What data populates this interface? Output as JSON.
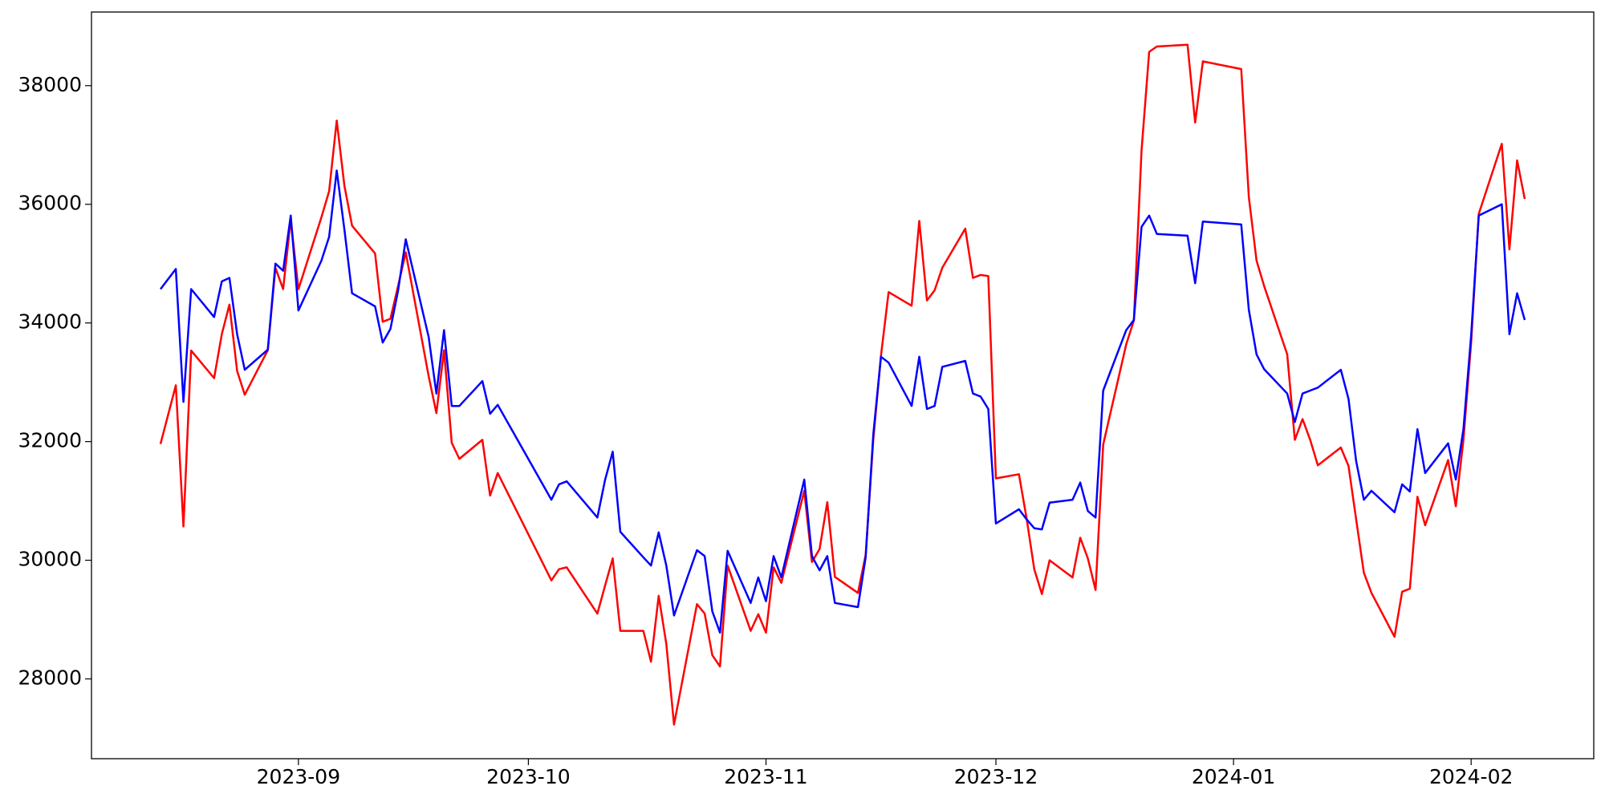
{
  "chart_data": {
    "type": "line",
    "x": [
      "2023-08-14",
      "2023-08-16",
      "2023-08-17",
      "2023-08-18",
      "2023-08-21",
      "2023-08-22",
      "2023-08-23",
      "2023-08-24",
      "2023-08-25",
      "2023-08-28",
      "2023-08-29",
      "2023-08-30",
      "2023-08-31",
      "2023-09-01",
      "2023-09-04",
      "2023-09-05",
      "2023-09-06",
      "2023-09-07",
      "2023-09-08",
      "2023-09-11",
      "2023-09-12",
      "2023-09-13",
      "2023-09-14",
      "2023-09-15",
      "2023-09-18",
      "2023-09-19",
      "2023-09-20",
      "2023-09-21",
      "2023-09-22",
      "2023-09-25",
      "2023-09-26",
      "2023-09-27",
      "2023-10-04",
      "2023-10-05",
      "2023-10-06",
      "2023-10-10",
      "2023-10-11",
      "2023-10-12",
      "2023-10-13",
      "2023-10-16",
      "2023-10-17",
      "2023-10-18",
      "2023-10-19",
      "2023-10-20",
      "2023-10-23",
      "2023-10-24",
      "2023-10-25",
      "2023-10-26",
      "2023-10-27",
      "2023-10-30",
      "2023-10-31",
      "2023-11-01",
      "2023-11-02",
      "2023-11-03",
      "2023-11-06",
      "2023-11-07",
      "2023-11-08",
      "2023-11-09",
      "2023-11-10",
      "2023-11-13",
      "2023-11-14",
      "2023-11-15",
      "2023-11-16",
      "2023-11-17",
      "2023-11-20",
      "2023-11-21",
      "2023-11-22",
      "2023-11-23",
      "2023-11-24",
      "2023-11-27",
      "2023-11-28",
      "2023-11-29",
      "2023-11-30",
      "2023-12-01",
      "2023-12-04",
      "2023-12-05",
      "2023-12-06",
      "2023-12-07",
      "2023-12-08",
      "2023-12-11",
      "2023-12-12",
      "2023-12-13",
      "2023-12-14",
      "2023-12-15",
      "2023-12-18",
      "2023-12-19",
      "2023-12-20",
      "2023-12-21",
      "2023-12-22",
      "2023-12-26",
      "2023-12-27",
      "2023-12-28",
      "2024-01-02",
      "2024-01-03",
      "2024-01-04",
      "2024-01-05",
      "2024-01-08",
      "2024-01-09",
      "2024-01-10",
      "2024-01-11",
      "2024-01-12",
      "2024-01-15",
      "2024-01-16",
      "2024-01-17",
      "2024-01-18",
      "2024-01-19",
      "2024-01-22",
      "2024-01-23",
      "2024-01-24",
      "2024-01-25",
      "2024-01-26",
      "2024-01-29",
      "2024-01-30",
      "2024-01-31",
      "2024-02-01",
      "2024-02-02",
      "2024-02-05",
      "2024-02-06",
      "2024-02-07",
      "2024-02-08"
    ],
    "series": [
      {
        "color": "red",
        "values": [
          31960,
          32950,
          30570,
          33535,
          33070,
          33810,
          34310,
          33190,
          32790,
          33540,
          34930,
          34570,
          35740,
          34570,
          35780,
          36220,
          37410,
          36310,
          35640,
          35170,
          34020,
          34070,
          34620,
          35190,
          33100,
          32480,
          33540,
          31980,
          31710,
          32030,
          31090,
          31470,
          29660,
          29850,
          29880,
          29100,
          29570,
          30030,
          28810,
          28810,
          28290,
          29400,
          28590,
          27230,
          29260,
          29100,
          28400,
          28210,
          29910,
          28810,
          29090,
          28780,
          29880,
          29620,
          31170,
          29970,
          30190,
          30980,
          29720,
          29450,
          30090,
          32030,
          33450,
          34520,
          34290,
          35720,
          34380,
          34550,
          34930,
          35590,
          34760,
          34810,
          34790,
          31380,
          31450,
          30710,
          29850,
          29430,
          30000,
          29710,
          30380,
          30030,
          29500,
          31950,
          33640,
          34040,
          36910,
          38570,
          38660,
          38690,
          37380,
          38410,
          38280,
          36120,
          35050,
          34620,
          33470,
          32030,
          32380,
          32030,
          31600,
          31900,
          31590,
          30690,
          29790,
          29450,
          28710,
          29470,
          29520,
          31070,
          30590,
          31690,
          30910,
          32030,
          33670,
          35840,
          37020,
          35240,
          36740,
          36090
        ]
      },
      {
        "color": "blue",
        "values": [
          34570,
          34910,
          32670,
          34570,
          34100,
          34700,
          34760,
          33810,
          33210,
          33550,
          35000,
          34880,
          35810,
          34210,
          35050,
          35450,
          36570,
          35570,
          34500,
          34280,
          33670,
          33900,
          34540,
          35410,
          33760,
          32810,
          33880,
          32600,
          32600,
          33020,
          32470,
          32620,
          31020,
          31280,
          31330,
          30720,
          31350,
          31830,
          30480,
          30050,
          29910,
          30470,
          29910,
          29070,
          30170,
          30070,
          29140,
          28780,
          30160,
          29280,
          29710,
          29310,
          30070,
          29710,
          31360,
          30070,
          29830,
          30070,
          29280,
          29210,
          30050,
          32120,
          33430,
          33330,
          32600,
          33430,
          32550,
          32600,
          33260,
          33360,
          32810,
          32760,
          32550,
          30620,
          30860,
          30690,
          30540,
          30520,
          30970,
          31020,
          31310,
          30830,
          30720,
          32860,
          33880,
          34050,
          35620,
          35810,
          35500,
          35470,
          34670,
          35710,
          35660,
          34220,
          33470,
          33220,
          32810,
          32330,
          32810,
          32860,
          32910,
          33210,
          32720,
          31670,
          31020,
          31170,
          30810,
          31280,
          31160,
          32210,
          31470,
          31970,
          31360,
          32210,
          33790,
          35810,
          36000,
          33810,
          34500,
          34050
        ]
      }
    ],
    "xlim": [
      "2023-08-05",
      "2024-02-17"
    ],
    "xticks": [
      "2023-09",
      "2023-10",
      "2023-11",
      "2023-12",
      "2024-01",
      "2024-02"
    ],
    "ylim": [
      26655,
      39241
    ],
    "yticks": [
      28000,
      30000,
      32000,
      34000,
      36000,
      38000
    ]
  }
}
